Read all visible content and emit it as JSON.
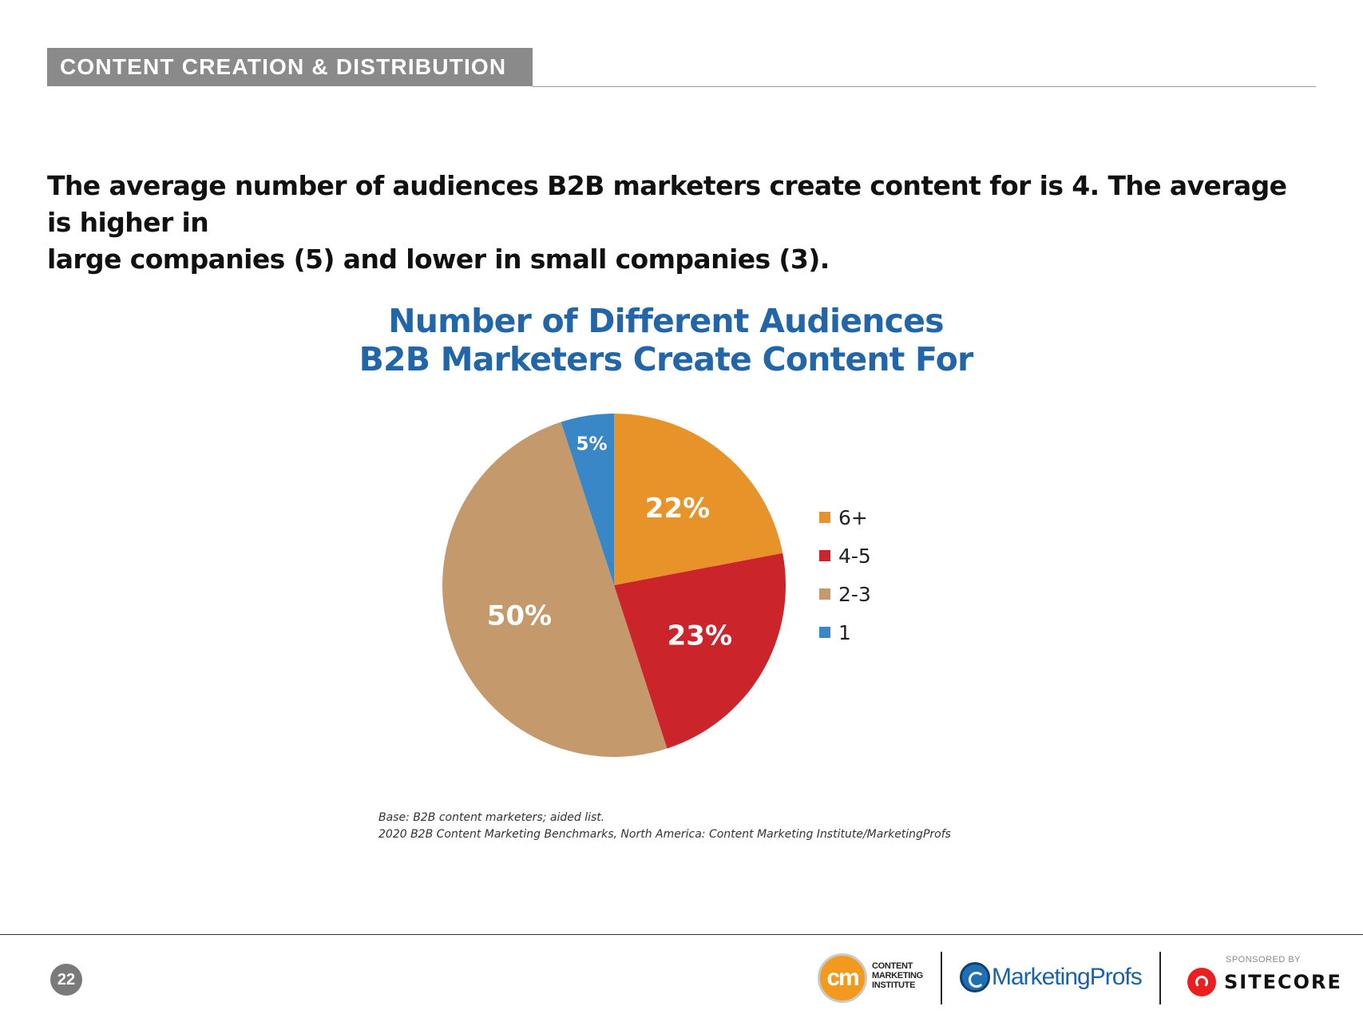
{
  "section": {
    "label": "CONTENT CREATION & DISTRIBUTION"
  },
  "headline": {
    "line1": "The average number of audiences B2B marketers create content for is 4. The average is higher in",
    "line2": "large companies (5) and lower in small companies (3)."
  },
  "chart_data": {
    "type": "pie",
    "title_lines": [
      "Number of Different Audiences",
      "B2B Marketers Create Content For"
    ],
    "slices": [
      {
        "label": "6+",
        "value": 22,
        "display": "22%",
        "color": "#e8932a"
      },
      {
        "label": "4-5",
        "value": 23,
        "display": "23%",
        "color": "#cb242b"
      },
      {
        "label": "2-3",
        "value": 50,
        "display": "50%",
        "color": "#c4996b"
      },
      {
        "label": "1",
        "value": 5,
        "display": "5%",
        "color": "#3a87c8"
      }
    ],
    "legend_position": "right"
  },
  "notes": {
    "base": "Base: B2B content marketers; aided list.",
    "source": "2020 B2B Content Marketing Benchmarks, North America: Content Marketing Institute/MarketingProfs"
  },
  "footer": {
    "page_number": "22",
    "cmi_mark": "cm",
    "cmi_text": [
      "CONTENT",
      "MARKETING",
      "INSTITUTE"
    ],
    "marketingprofs": "MarketingProfs",
    "sponsored_by": "SPONSORED BY",
    "sitecore": "SITECORE"
  }
}
